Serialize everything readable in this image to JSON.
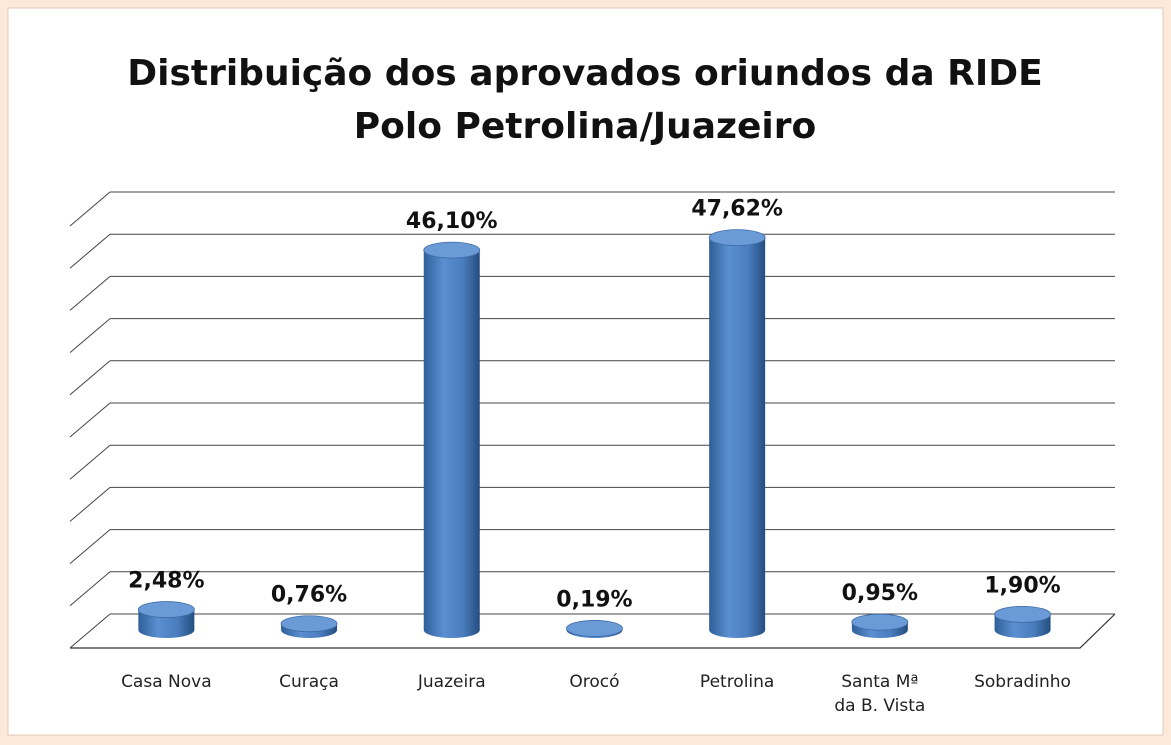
{
  "chart_data": {
    "type": "bar3d",
    "title": "Distribuição dos aprovados oriundos da RIDE",
    "subtitle": "Polo Petrolina/Juazeiro",
    "categories": [
      "Casa Nova",
      "Curaça",
      "Juazeira",
      "Orocó",
      "Petrolina",
      "Santa Mª\nda B. Vista",
      "Sobradinho"
    ],
    "values": [
      2.48,
      0.76,
      46.1,
      0.19,
      47.62,
      0.95,
      1.9
    ],
    "value_labels": [
      "2,48%",
      "0,76%",
      "46,10%",
      "0,19%",
      "47,62%",
      "0,95%",
      "1,90%"
    ],
    "color": "#4f81bd",
    "ylim": [
      0,
      50
    ],
    "yticks": [
      0,
      5,
      10,
      15,
      20,
      25,
      30,
      35,
      40,
      45,
      50
    ],
    "grid": true
  }
}
